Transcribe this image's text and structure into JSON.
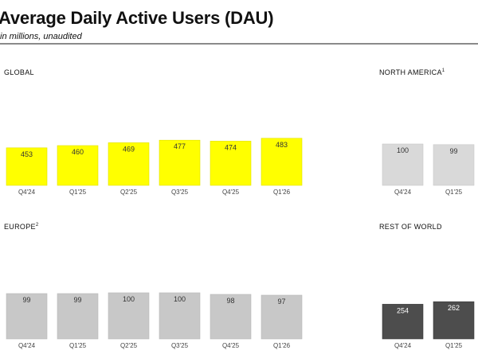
{
  "header": {
    "title": "Average Daily Active Users (DAU)",
    "subtitle": "in millions, unaudited"
  },
  "colors": {
    "global": "#ffff00",
    "north_america": "#d9d9d9",
    "europe": "#c8c8c8",
    "rest_of_world": "#4d4d4d",
    "label_dark": "#333333",
    "label_light": "#ffffff",
    "tick": "#444444"
  },
  "chart_data": [
    {
      "type": "bar",
      "title": "GLOBAL",
      "title_note": "",
      "categories": [
        "Q4'24",
        "Q1'25",
        "Q2'25",
        "Q3'25",
        "Q4'25",
        "Q1'26"
      ],
      "values": [
        453,
        460,
        469,
        477,
        474,
        483
      ]
    },
    {
      "type": "bar",
      "title": "NORTH AMERICA",
      "title_note": "1",
      "categories": [
        "Q4'24",
        "Q1'25"
      ],
      "values": [
        100,
        99
      ]
    },
    {
      "type": "bar",
      "title": "EUROPE",
      "title_note": "2",
      "categories": [
        "Q4'24",
        "Q1'25",
        "Q2'25",
        "Q3'25",
        "Q4'25",
        "Q1'26"
      ],
      "values": [
        99,
        99,
        100,
        100,
        98,
        97
      ]
    },
    {
      "type": "bar",
      "title": "REST OF WORLD",
      "title_note": "",
      "categories": [
        "Q4'24",
        "Q1'25"
      ],
      "values": [
        254,
        262
      ]
    }
  ]
}
